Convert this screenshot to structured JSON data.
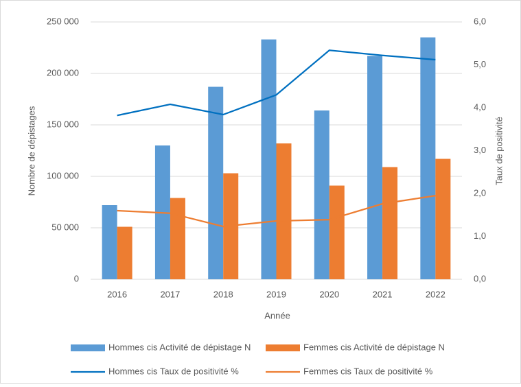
{
  "chart_data": {
    "type": "bar-line",
    "categories": [
      "2016",
      "2017",
      "2018",
      "2019",
      "2020",
      "2021",
      "2022"
    ],
    "series": [
      {
        "name": "Hommes cis Activité de dépistage N",
        "color": "#5b9bd5",
        "type": "bar",
        "values": [
          72000,
          130000,
          187000,
          233000,
          164000,
          217000,
          235000
        ]
      },
      {
        "name": "Femmes cis Activité de dépistage N",
        "color": "#ed7d31",
        "type": "bar",
        "values": [
          51000,
          79000,
          103000,
          132000,
          91000,
          109000,
          117000
        ]
      },
      {
        "name": "Hommes cis Taux de positivité %",
        "color": "#0070c0",
        "type": "line",
        "axis": "y2",
        "values": [
          3.82,
          4.08,
          3.84,
          4.3,
          5.34,
          5.22,
          5.12
        ]
      },
      {
        "name": "Femmes cis Taux de positivité %",
        "color": "#ed7d31",
        "type": "line",
        "axis": "y2",
        "values": [
          1.6,
          1.54,
          1.23,
          1.36,
          1.39,
          1.76,
          1.95
        ]
      }
    ],
    "xlabel": "Année",
    "ylabel": "Nombre de dépistages",
    "y2label": "Taux de positivité",
    "ylim": [
      0,
      250000
    ],
    "yticks": [
      0,
      {
        "value": 50000,
        "label": "50 000"
      },
      {
        "value": 100000,
        "label": "100 000"
      },
      {
        "value": 150000,
        "label": "150 000"
      },
      {
        "value": 200000,
        "label": "200 000"
      },
      {
        "value": 250000,
        "label": "250 000"
      }
    ],
    "y2lim": [
      0,
      6
    ],
    "y2ticks": [
      {
        "value": 0,
        "label": "0,0"
      },
      {
        "value": 1,
        "label": "1,0"
      },
      {
        "value": 2,
        "label": "2,0"
      },
      {
        "value": 3,
        "label": "3,0"
      },
      {
        "value": 4,
        "label": "4,0"
      },
      {
        "value": 5,
        "label": "5,0"
      },
      {
        "value": 6,
        "label": "6,0"
      }
    ],
    "grid": true,
    "legend": "bottom"
  }
}
